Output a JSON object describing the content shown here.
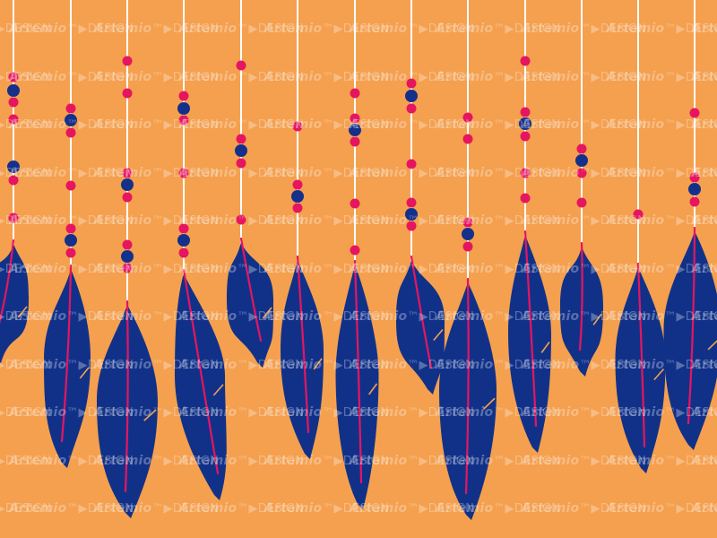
{
  "watermark": {
    "brand": "Artemio",
    "sep": "™▶",
    "tail": "DESIGN"
  },
  "colors": {
    "background": "#F4A04F",
    "string": "#FFFFFF",
    "bead_pink": "#E6155F",
    "bead_navy": "#14308A",
    "feather": "#113189",
    "quill": "#E6155F"
  }
}
